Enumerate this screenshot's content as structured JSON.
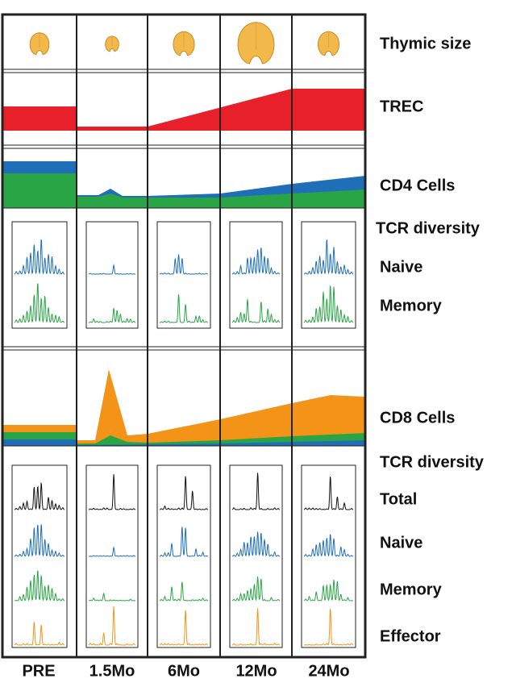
{
  "row_labels": [
    "Thymic size",
    "TREC",
    "CD4 Cells",
    "TCR diversity",
    "Naive",
    "Memory",
    "CD8 Cells",
    "TCR diversity",
    "Total",
    "Naive",
    "Memory",
    "Effector"
  ],
  "column_labels": [
    "PRE",
    "1.5Mo",
    "6Mo",
    "12Mo",
    "24Mo"
  ]
}
